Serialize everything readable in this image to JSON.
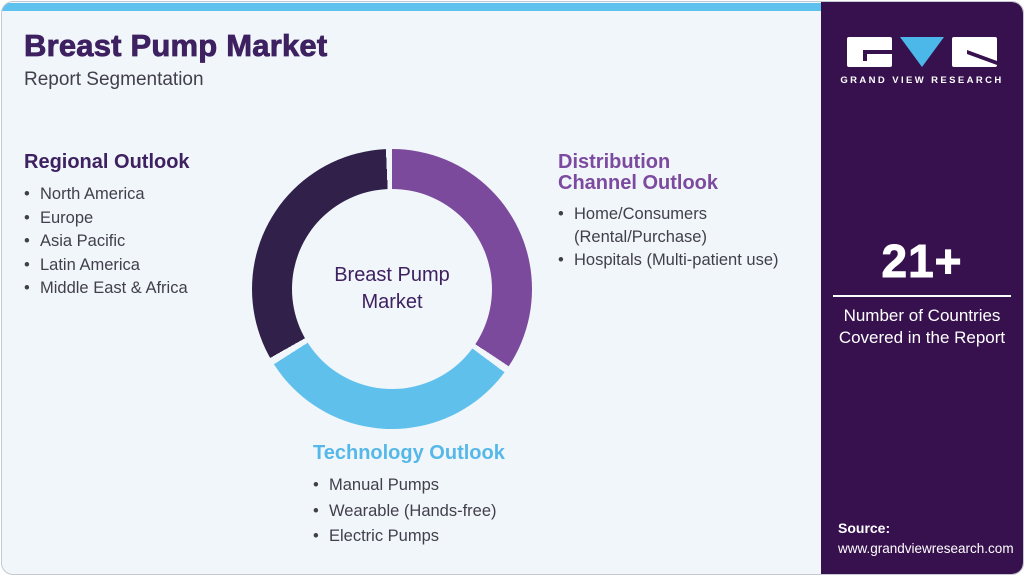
{
  "bullet": "•",
  "header": {
    "title": "Breast Pump Market",
    "subtitle": "Report Segmentation"
  },
  "chart_data": {
    "type": "pie",
    "donut": true,
    "inner_radius_ratio": 0.71,
    "center_label": "Breast Pump Market",
    "legend_position": "around",
    "segments": [
      {
        "name": "Distribution Channel Outlook",
        "color": "#7b4a9c",
        "start_deg": 0,
        "end_deg": 123.5,
        "share_pct": 34.3
      },
      {
        "name": "Technology Outlook",
        "color": "#5fc0ec",
        "start_deg": 126.5,
        "end_deg": 237.5,
        "share_pct": 30.8
      },
      {
        "name": "Regional Outlook",
        "color": "#30204a",
        "start_deg": 240.5,
        "end_deg": 357.5,
        "share_pct": 32.5
      }
    ]
  },
  "sections": {
    "regional": {
      "heading": "Regional Outlook",
      "items": [
        "North America",
        "Europe",
        "Asia Pacific",
        "Latin America",
        "Middle East & Africa"
      ]
    },
    "distribution": {
      "heading_line1": "Distribution",
      "heading_line2": "Channel Outlook",
      "items": [
        "Home/Consumers (Rental/Purchase)",
        "Hospitals (Multi-patient use)"
      ]
    },
    "technology": {
      "heading": "Technology Outlook",
      "items": [
        "Manual Pumps",
        "Wearable (Hands-free)",
        "Electric Pumps"
      ]
    }
  },
  "sidebar": {
    "logo": {
      "brand": "GRAND VIEW RESEARCH"
    },
    "stat": {
      "value": "21+",
      "caption": "Number of Countries Covered in the Report"
    },
    "source": {
      "label": "Source:",
      "url": "www.grandviewresearch.com"
    }
  },
  "colors": {
    "accent_cyan": "#5ec1ee",
    "card_bg": "#f1f6fa",
    "sidebar_bg": "#37114e",
    "title_purple": "#3e2160",
    "body_text": "#413f4b",
    "heading_purple": "#7c4b9f",
    "heading_cyan": "#56b8e9",
    "border_gray": "#c5cad2",
    "logo_block_white": "#ffffff",
    "logo_triangle_cyan": "#4cb8e9"
  }
}
